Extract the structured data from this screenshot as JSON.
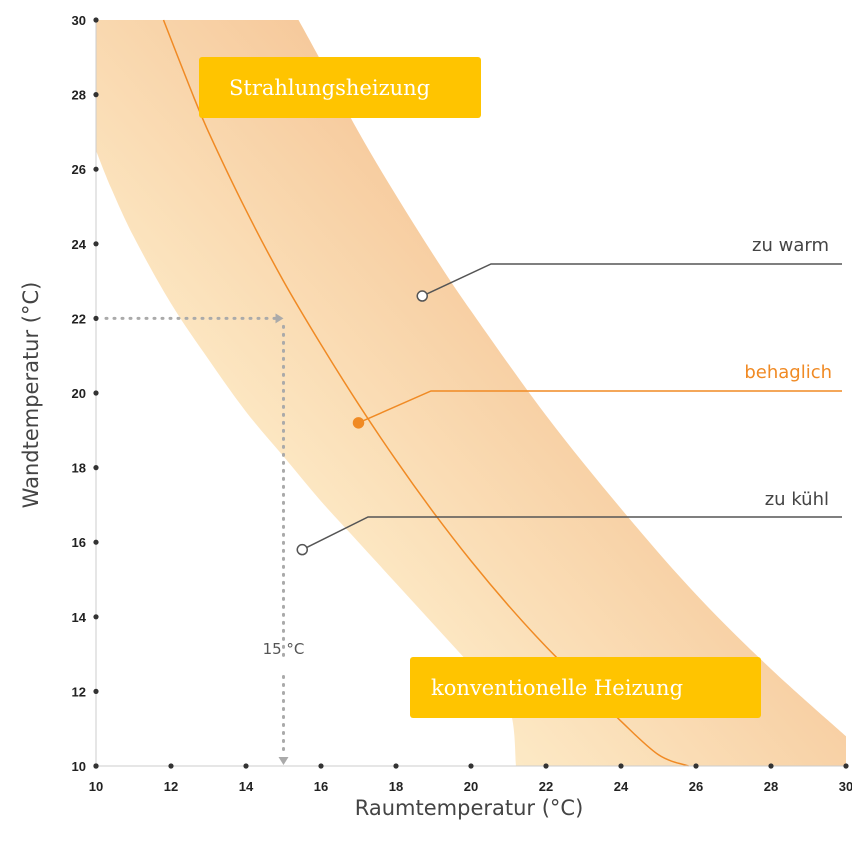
{
  "chart_data": {
    "type": "area",
    "xlabel": "Raumtemperatur (°C)",
    "ylabel": "Wandtemperatur (°C)",
    "xlim": [
      10,
      30
    ],
    "ylim": [
      10,
      30
    ],
    "xticks": [
      10,
      12,
      14,
      16,
      18,
      20,
      22,
      24,
      26,
      28,
      30
    ],
    "yticks": [
      10,
      12,
      14,
      16,
      18,
      20,
      22,
      24,
      26,
      28,
      30
    ],
    "grid": false,
    "band": {
      "name": "comfort zone",
      "lower": {
        "x": [
          10,
          10.4,
          11,
          12,
          13,
          14,
          15,
          16,
          17,
          18,
          19,
          20,
          21,
          21.2
        ],
        "y": [
          26.5,
          25.5,
          24.2,
          22.4,
          20.9,
          19.5,
          18.3,
          17.1,
          16.0,
          14.9,
          13.8,
          12.7,
          11.6,
          10.0
        ]
      },
      "upper": {
        "x": [
          15.4,
          16,
          17,
          18,
          19,
          20,
          22,
          24,
          26,
          28,
          30
        ],
        "y": [
          30,
          28.9,
          27.0,
          25.3,
          23.7,
          22.2,
          19.4,
          16.9,
          14.6,
          12.6,
          10.8
        ]
      }
    },
    "series": [
      {
        "name": "behaglich",
        "x": [
          11.8,
          12.5,
          13,
          14,
          15,
          16,
          17,
          18,
          19,
          20,
          21,
          22,
          23,
          24,
          25,
          25.8
        ],
        "y": [
          30,
          28.2,
          27.0,
          24.9,
          23.0,
          21.3,
          19.7,
          18.2,
          16.8,
          15.5,
          14.3,
          13.2,
          12.2,
          11.2,
          10.3,
          10.0
        ]
      }
    ],
    "reference": {
      "x": 15,
      "y": 22,
      "label": "15 °C"
    },
    "callouts": {
      "zu_warm": {
        "text": "zu warm",
        "point": [
          18.7,
          22.6
        ]
      },
      "behaglich": {
        "text": "behaglich",
        "point": [
          17.0,
          19.2
        ]
      },
      "zu_kuehl": {
        "text": "zu kühl",
        "point": [
          15.5,
          15.8
        ]
      }
    },
    "labels": {
      "strahlung": "Strahlungsheizung",
      "konventionell": "konventionelle Heizung"
    },
    "colors": {
      "band_light": "#fff4cf",
      "band_dark": "#f6c89a",
      "curve": "#f08a24",
      "callout_dark": "#555555",
      "callout_orange": "#f08a24",
      "label_box": "#ffc400",
      "reference": "#aaaaaa",
      "axis": "#333333"
    }
  }
}
